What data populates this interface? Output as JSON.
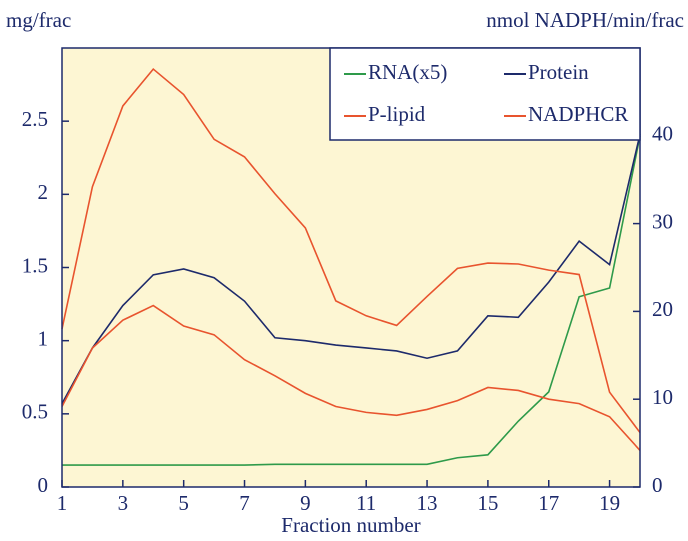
{
  "chart_data": {
    "type": "line",
    "ylabel": "mg/frac",
    "y2label": "nmol NADPH/min/frac",
    "xlabel": "Fraction number",
    "x": [
      1,
      2,
      3,
      4,
      5,
      6,
      7,
      8,
      9,
      10,
      11,
      12,
      13,
      14,
      15,
      16,
      17,
      18,
      19,
      20
    ],
    "xlim": [
      1,
      20
    ],
    "xticks": [
      1,
      3,
      5,
      7,
      9,
      11,
      13,
      15,
      17,
      19
    ],
    "ylim": [
      0,
      3
    ],
    "yticks": [
      0,
      0.5,
      1,
      1.5,
      2,
      2.5
    ],
    "y2lim": [
      0,
      50
    ],
    "y2ticks": [
      0,
      10,
      20,
      30,
      40
    ],
    "legend": "upper right",
    "series": [
      {
        "name": "RNA(x5)",
        "color": "#2e9a4a",
        "values": [
          0.15,
          0.15,
          0.15,
          0.15,
          0.15,
          0.15,
          0.15,
          0.155,
          0.155,
          0.155,
          0.155,
          0.155,
          0.155,
          0.2,
          0.22,
          0.45,
          0.65,
          1.3,
          1.36,
          2.4
        ]
      },
      {
        "name": "Protein",
        "color": "#1d2a6b",
        "values": [
          0.57,
          0.95,
          1.24,
          1.45,
          1.49,
          1.43,
          1.27,
          1.02,
          1.0,
          0.97,
          0.95,
          0.93,
          0.88,
          0.93,
          1.17,
          1.16,
          1.4,
          1.68,
          1.52,
          2.41
        ]
      },
      {
        "name": "P-lipid",
        "color": "#e8542e",
        "values": [
          0.55,
          0.95,
          1.14,
          1.24,
          1.1,
          1.04,
          0.87,
          0.76,
          0.64,
          0.55,
          0.51,
          0.49,
          0.53,
          0.59,
          0.68,
          0.66,
          0.6,
          0.57,
          0.48,
          0.25
        ]
      },
      {
        "name": "NADPHCR",
        "color": "#e8542e",
        "axis": "y2",
        "values": [
          18,
          34.2,
          43.4,
          47.6,
          44.7,
          39.6,
          37.6,
          33.4,
          29.5,
          21.2,
          19.5,
          18.4,
          21.7,
          24.9,
          25.5,
          25.4,
          24.7,
          24.2,
          10.8,
          6.2
        ]
      }
    ]
  }
}
